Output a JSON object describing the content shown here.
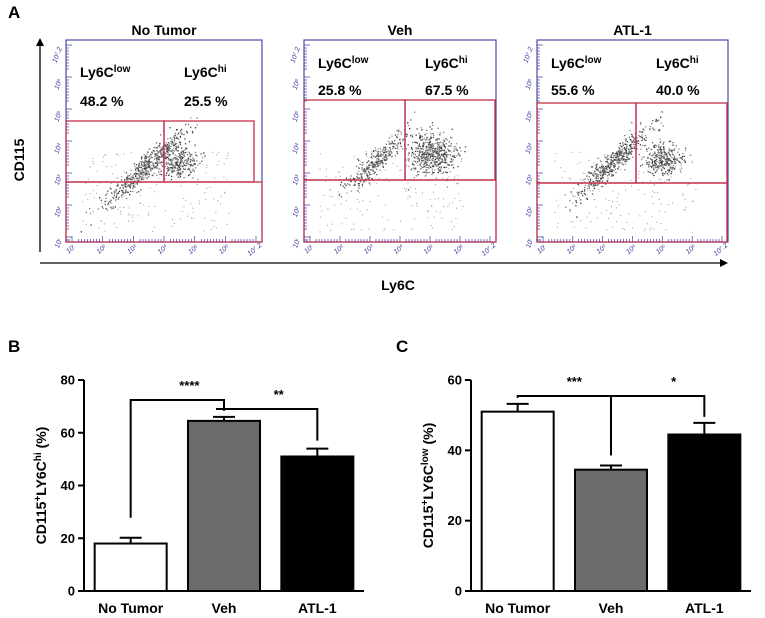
{
  "panel_labels": {
    "a": "A",
    "b": "B",
    "c": "C"
  },
  "flow_axes": {
    "y_label": "CD115",
    "x_label": "Ly6C"
  },
  "chart_data": [
    {
      "type": "scatter",
      "panel": "A",
      "plots": [
        {
          "title": "No Tumor",
          "gate_low_label": "Ly6C",
          "gate_low_sup": "low",
          "gate_hi_label": "Ly6C",
          "gate_hi_sup": "hi",
          "gate_low_value": "48.2 %",
          "gate_hi_value": "25.5 %",
          "x_ticks": [
            "10ⁱ",
            "10²",
            "10³",
            "10⁴",
            "10⁵",
            "10⁶",
            "10⁷.2"
          ],
          "y_ticks": [
            "10ⁱ",
            "10²",
            "10³",
            "10⁴",
            "10⁵",
            "10⁶",
            "10⁷.2"
          ]
        },
        {
          "title": "Veh",
          "gate_low_label": "Ly6C",
          "gate_low_sup": "low",
          "gate_hi_label": "Ly6C",
          "gate_hi_sup": "hi",
          "gate_low_value": "25.8 %",
          "gate_hi_value": "67.5 %",
          "x_ticks": [
            "10ⁱ",
            "10²",
            "10³",
            "10⁴",
            "10⁵",
            "10⁶",
            "10⁷.2"
          ],
          "y_ticks": [
            "10ⁱ",
            "10²",
            "10³",
            "10⁴",
            "10⁵",
            "10⁶",
            "10⁷.2"
          ]
        },
        {
          "title": "ATL-1",
          "gate_low_label": "Ly6C",
          "gate_low_sup": "low",
          "gate_hi_label": "Ly6C",
          "gate_hi_sup": "hi",
          "gate_low_value": "55.6 %",
          "gate_hi_value": "40.0 %",
          "x_ticks": [
            "10ⁱ",
            "10²",
            "10³",
            "10⁴",
            "10⁵",
            "10⁶",
            "10⁷.2"
          ],
          "y_ticks": [
            "10ⁱ",
            "10²",
            "10³",
            "10⁴",
            "10⁵",
            "10⁶",
            "10⁷.2"
          ]
        }
      ]
    },
    {
      "type": "bar",
      "panel": "B",
      "categories": [
        "No Tumor",
        "Veh",
        "ATL-1"
      ],
      "values": [
        18,
        64.5,
        51
      ],
      "errors": [
        2.2,
        1.5,
        3
      ],
      "bar_colors": [
        "#ffffff",
        "#6b6b6b",
        "#000000"
      ],
      "ylabel": "CD115",
      "ylabel_sup_plus": "+",
      "ylabel_mid": "LY6C",
      "ylabel_sup_mod": "hi",
      "ylabel_suffix": " (%)",
      "ylim": [
        0,
        80
      ],
      "yticks": [
        0,
        20,
        40,
        60,
        80
      ],
      "significance": [
        {
          "from": 0,
          "to": 1,
          "label": "****"
        },
        {
          "from": 1,
          "to": 2,
          "label": "**"
        }
      ]
    },
    {
      "type": "bar",
      "panel": "C",
      "categories": [
        "No Tumor",
        "Veh",
        "ATL-1"
      ],
      "values": [
        51,
        34.5,
        44.5
      ],
      "errors": [
        2.2,
        1.2,
        3.3
      ],
      "bar_colors": [
        "#ffffff",
        "#6b6b6b",
        "#000000"
      ],
      "ylabel": "CD115",
      "ylabel_sup_plus": "+",
      "ylabel_mid": "LY6C",
      "ylabel_sup_mod": "low",
      "ylabel_suffix": " (%)",
      "ylim": [
        0,
        60
      ],
      "yticks": [
        0,
        20,
        40,
        60
      ],
      "significance": [
        {
          "from": 0,
          "to": 1,
          "label": "***"
        },
        {
          "from": 1,
          "to": 2,
          "label": "*"
        }
      ]
    }
  ]
}
